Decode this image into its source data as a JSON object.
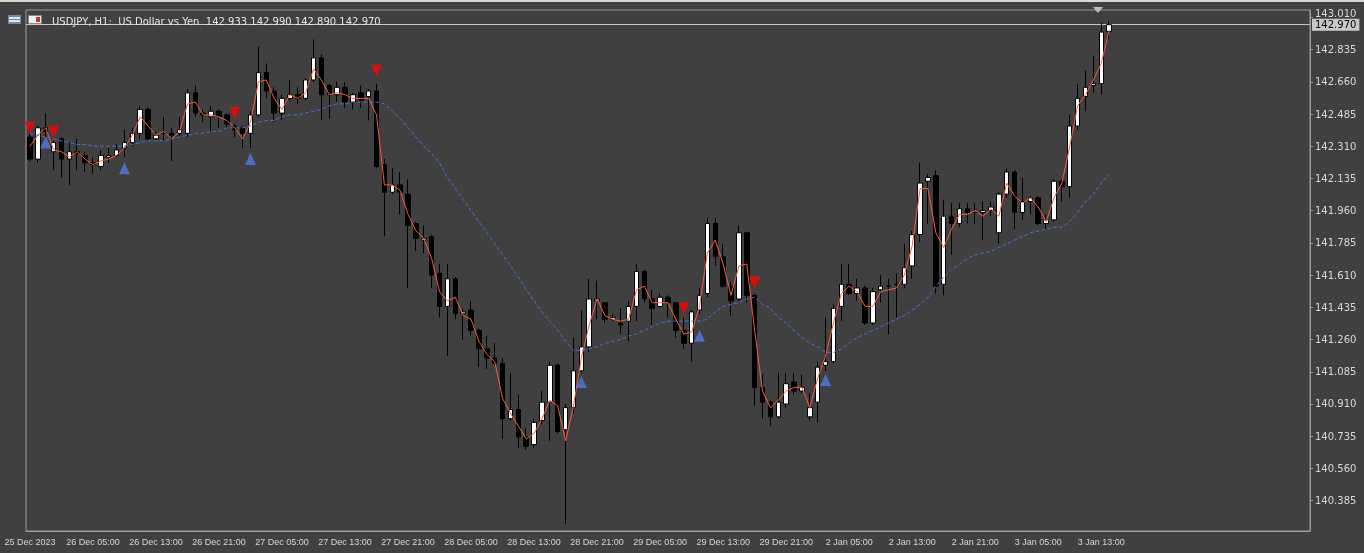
{
  "chart_data": {
    "type": "candlestick",
    "title": "USDJPY, H1:  US Dollar vs Yen  142.933 142.990 142.890 142.970",
    "categories": [
      "25 Dec 2023",
      null,
      null,
      null,
      null,
      null,
      null,
      null,
      "26 Dec 05:00",
      null,
      null,
      null,
      null,
      null,
      null,
      null,
      "26 Dec 13:00",
      null,
      null,
      null,
      null,
      null,
      null,
      null,
      "26 Dec 21:00",
      null,
      null,
      null,
      null,
      null,
      null,
      null,
      "27 Dec 05:00",
      null,
      null,
      null,
      null,
      null,
      null,
      null,
      "27 Dec 13:00",
      null,
      null,
      null,
      null,
      null,
      null,
      null,
      "27 Dec 21:00",
      null,
      null,
      null,
      null,
      null,
      null,
      null,
      "28 Dec 05:00",
      null,
      null,
      null,
      null,
      null,
      null,
      null,
      "28 Dec 13:00",
      null,
      null,
      null,
      null,
      null,
      null,
      null,
      "28 Dec 21:00",
      null,
      null,
      null,
      null,
      null,
      null,
      null,
      "29 Dec 05:00",
      null,
      null,
      null,
      null,
      null,
      null,
      null,
      "29 Dec 13:00",
      null,
      null,
      null,
      null,
      null,
      null,
      null,
      "29 Dec 21:00",
      null,
      null,
      null,
      null,
      null,
      null,
      null,
      "2 Jan 05:00",
      null,
      null,
      null,
      null,
      null,
      null,
      null,
      "2 Jan 13:00",
      null,
      null,
      null,
      null,
      null,
      null,
      null,
      "2 Jan 21:00",
      null,
      null,
      null,
      null,
      null,
      null,
      null,
      "3 Jan 05:00",
      null,
      null,
      null,
      null,
      null,
      null,
      null,
      "3 Jan 13:00",
      null
    ],
    "ohlc": [
      [
        142.36,
        142.38,
        142.23,
        142.24
      ],
      [
        142.24,
        142.42,
        142.22,
        142.41
      ],
      [
        142.41,
        142.49,
        142.36,
        142.39
      ],
      [
        142.28,
        142.34,
        142.18,
        142.33
      ],
      [
        142.35,
        142.36,
        142.14,
        142.24
      ],
      [
        142.24,
        142.33,
        142.1,
        142.28
      ],
      [
        142.28,
        142.35,
        142.18,
        142.27
      ],
      [
        142.26,
        142.28,
        142.17,
        142.22
      ],
      [
        142.22,
        142.25,
        142.16,
        142.21
      ],
      [
        142.2,
        142.29,
        142.18,
        142.26
      ],
      [
        142.25,
        142.3,
        142.22,
        142.26
      ],
      [
        142.26,
        142.32,
        142.25,
        142.29
      ],
      [
        142.3,
        142.4,
        142.25,
        142.33
      ],
      [
        142.33,
        142.41,
        142.31,
        142.38
      ],
      [
        142.38,
        142.53,
        142.35,
        142.51
      ],
      [
        142.51,
        142.52,
        142.34,
        142.35
      ],
      [
        142.35,
        142.39,
        142.34,
        142.37
      ],
      [
        142.38,
        142.47,
        142.34,
        142.38
      ],
      [
        142.38,
        142.41,
        142.23,
        142.37
      ],
      [
        142.38,
        142.47,
        142.36,
        142.4
      ],
      [
        142.38,
        142.62,
        142.36,
        142.6
      ],
      [
        142.6,
        142.64,
        142.47,
        142.49
      ],
      [
        142.49,
        142.51,
        142.44,
        142.48
      ],
      [
        142.47,
        142.53,
        142.39,
        142.5
      ],
      [
        142.5,
        142.51,
        142.41,
        142.47
      ],
      [
        142.48,
        142.49,
        142.41,
        142.43
      ],
      [
        142.42,
        142.43,
        142.36,
        142.4
      ],
      [
        142.41,
        142.42,
        142.3,
        142.38
      ],
      [
        142.38,
        142.5,
        142.3,
        142.48
      ],
      [
        142.48,
        142.85,
        142.47,
        142.71
      ],
      [
        142.71,
        142.76,
        142.57,
        142.61
      ],
      [
        142.61,
        142.63,
        142.44,
        142.49
      ],
      [
        142.49,
        142.59,
        142.45,
        142.57
      ],
      [
        142.57,
        142.67,
        142.56,
        142.59
      ],
      [
        142.59,
        142.63,
        142.54,
        142.57
      ],
      [
        142.57,
        142.68,
        142.56,
        142.67
      ],
      [
        142.67,
        142.89,
        142.66,
        142.79
      ],
      [
        142.79,
        142.81,
        142.45,
        142.59
      ],
      [
        142.64,
        142.65,
        142.46,
        142.59
      ],
      [
        142.59,
        142.66,
        142.55,
        142.63
      ],
      [
        142.63,
        142.66,
        142.52,
        142.55
      ],
      [
        142.55,
        142.6,
        142.51,
        142.59
      ],
      [
        142.6,
        142.64,
        142.52,
        142.56
      ],
      [
        142.58,
        142.62,
        142.45,
        142.61
      ],
      [
        142.61,
        142.65,
        142.19,
        142.2
      ],
      [
        142.21,
        142.24,
        141.82,
        142.06
      ],
      [
        142.06,
        142.19,
        142.05,
        142.1
      ],
      [
        142.1,
        142.17,
        141.94,
        142.06
      ],
      [
        142.05,
        142.13,
        141.54,
        141.88
      ],
      [
        141.89,
        141.9,
        141.74,
        141.81
      ],
      [
        141.8,
        141.88,
        141.73,
        141.81
      ],
      [
        141.82,
        141.83,
        141.54,
        141.61
      ],
      [
        141.62,
        141.67,
        141.38,
        141.44
      ],
      [
        141.44,
        141.67,
        141.17,
        141.59
      ],
      [
        141.59,
        141.6,
        141.37,
        141.4
      ],
      [
        141.4,
        141.43,
        141.26,
        141.41
      ],
      [
        141.42,
        141.47,
        141.28,
        141.31
      ],
      [
        141.31,
        141.32,
        141.11,
        141.21
      ],
      [
        141.21,
        141.28,
        141.1,
        141.16
      ],
      [
        141.16,
        141.24,
        141.12,
        141.13
      ],
      [
        141.13,
        141.16,
        140.72,
        140.83
      ],
      [
        140.83,
        141.08,
        140.82,
        140.88
      ],
      [
        140.88,
        140.96,
        140.67,
        140.73
      ],
      [
        140.73,
        140.78,
        140.66,
        140.68
      ],
      [
        140.69,
        140.83,
        140.67,
        140.81
      ],
      [
        140.82,
        140.98,
        140.8,
        140.92
      ],
      [
        140.92,
        141.14,
        140.71,
        141.12
      ],
      [
        141.12,
        141.13,
        140.75,
        140.76
      ],
      [
        140.77,
        140.91,
        140.26,
        140.89
      ],
      [
        140.89,
        141.27,
        140.86,
        141.09
      ],
      [
        141.09,
        141.42,
        141.08,
        141.22
      ],
      [
        141.22,
        141.59,
        141.19,
        141.48
      ],
      [
        141.47,
        141.58,
        141.37,
        141.48
      ],
      [
        141.46,
        141.46,
        141.35,
        141.37
      ],
      [
        141.37,
        141.4,
        141.36,
        141.38
      ],
      [
        141.35,
        141.43,
        141.29,
        141.34
      ],
      [
        141.36,
        141.47,
        141.25,
        141.44
      ],
      [
        141.44,
        141.67,
        141.36,
        141.63
      ],
      [
        141.63,
        141.64,
        141.46,
        141.48
      ],
      [
        141.48,
        141.53,
        141.34,
        141.43
      ],
      [
        141.44,
        141.51,
        141.43,
        141.49
      ],
      [
        141.49,
        141.5,
        141.38,
        141.46
      ],
      [
        141.46,
        141.46,
        141.27,
        141.31
      ],
      [
        141.31,
        141.38,
        141.21,
        141.24
      ],
      [
        141.24,
        141.42,
        141.14,
        141.41
      ],
      [
        141.42,
        141.54,
        141.4,
        141.5
      ],
      [
        141.51,
        141.92,
        141.49,
        141.89
      ],
      [
        141.89,
        141.92,
        141.66,
        141.71
      ],
      [
        141.71,
        141.78,
        141.54,
        141.55
      ],
      [
        141.55,
        141.57,
        141.39,
        141.47
      ],
      [
        141.48,
        141.88,
        141.47,
        141.84
      ],
      [
        141.84,
        141.84,
        141.46,
        141.5
      ],
      [
        141.5,
        141.51,
        140.9,
        141.0
      ],
      [
        141.0,
        141.07,
        140.83,
        140.92
      ],
      [
        140.92,
        140.93,
        140.79,
        140.84
      ],
      [
        140.84,
        141.08,
        140.83,
        140.92
      ],
      [
        140.91,
        141.08,
        140.89,
        141.02
      ],
      [
        141.03,
        141.08,
        140.96,
        140.98
      ],
      [
        140.98,
        141.07,
        140.97,
        141.0
      ],
      [
        140.84,
        140.97,
        140.82,
        140.89
      ],
      [
        140.92,
        141.14,
        140.81,
        141.11
      ],
      [
        141.12,
        141.38,
        141.09,
        141.14
      ],
      [
        141.14,
        141.45,
        141.13,
        141.43
      ],
      [
        141.44,
        141.67,
        141.36,
        141.56
      ],
      [
        141.56,
        141.67,
        141.5,
        141.51
      ],
      [
        141.51,
        141.59,
        141.47,
        141.54
      ],
      [
        141.54,
        141.55,
        141.34,
        141.35
      ],
      [
        141.35,
        141.54,
        141.34,
        141.52
      ],
      [
        141.53,
        141.61,
        141.46,
        141.55
      ],
      [
        141.55,
        141.59,
        141.29,
        141.55
      ],
      [
        141.56,
        141.62,
        141.38,
        141.56
      ],
      [
        141.56,
        141.78,
        141.54,
        141.65
      ],
      [
        141.66,
        141.85,
        141.59,
        141.83
      ],
      [
        141.83,
        142.22,
        141.79,
        142.11
      ],
      [
        142.12,
        142.16,
        141.89,
        142.14
      ],
      [
        142.15,
        142.18,
        141.51,
        141.55
      ],
      [
        141.56,
        142.02,
        141.5,
        141.93
      ],
      [
        141.93,
        142.0,
        141.72,
        141.89
      ],
      [
        141.89,
        142.0,
        141.87,
        141.97
      ],
      [
        141.97,
        142.0,
        141.89,
        141.95
      ],
      [
        141.95,
        142.0,
        141.89,
        141.95
      ],
      [
        141.95,
        142.01,
        141.8,
        141.96
      ],
      [
        141.96,
        142.01,
        141.93,
        141.98
      ],
      [
        141.84,
        142.06,
        141.78,
        142.05
      ],
      [
        142.05,
        142.19,
        142.03,
        142.17
      ],
      [
        142.17,
        142.18,
        141.86,
        141.95
      ],
      [
        141.95,
        142.14,
        141.91,
        142.01
      ],
      [
        142.01,
        142.04,
        141.94,
        142.03
      ],
      [
        142.03,
        142.04,
        141.88,
        141.89
      ],
      [
        141.89,
        141.94,
        141.86,
        141.91
      ],
      [
        141.91,
        142.13,
        141.9,
        142.12
      ],
      [
        142.12,
        142.13,
        142.01,
        142.09
      ],
      [
        142.09,
        142.48,
        142.03,
        142.42
      ],
      [
        142.42,
        142.65,
        142.4,
        142.57
      ],
      [
        142.58,
        142.72,
        142.5,
        142.63
      ],
      [
        142.64,
        142.8,
        142.6,
        142.65
      ],
      [
        142.65,
        142.98,
        142.59,
        142.93
      ],
      [
        142.933,
        142.99,
        142.89,
        142.97
      ]
    ],
    "series": [
      {
        "type": "line",
        "color": "#ff5a3c",
        "marker": "none",
        "values": [
          142.31,
          142.37,
          142.41,
          142.29,
          142.28,
          142.25,
          142.28,
          142.24,
          142.21,
          142.23,
          142.24,
          142.26,
          142.3,
          142.37,
          142.47,
          142.42,
          142.37,
          142.39,
          142.35,
          142.39,
          142.54,
          142.55,
          142.48,
          142.48,
          142.47,
          142.45,
          142.41,
          142.35,
          142.44,
          142.66,
          142.67,
          142.57,
          142.51,
          142.59,
          142.57,
          142.6,
          142.73,
          142.67,
          142.59,
          142.6,
          142.59,
          142.57,
          142.57,
          142.57,
          142.48,
          142.1,
          142.1,
          142.07,
          141.94,
          141.85,
          141.81,
          141.7,
          141.52,
          141.47,
          141.49,
          141.39,
          141.37,
          141.25,
          141.18,
          141.14,
          140.94,
          140.86,
          140.79,
          140.72,
          140.75,
          140.83,
          140.93,
          140.9,
          140.71,
          140.9,
          141.16,
          141.34,
          141.48,
          141.39,
          141.37,
          141.36,
          141.37,
          141.53,
          141.55,
          141.46,
          141.46,
          141.46,
          141.37,
          141.29,
          141.3,
          141.44,
          141.73,
          141.8,
          141.67,
          141.5,
          141.66,
          141.67,
          141.31,
          140.98,
          140.89,
          140.93,
          140.98,
          141.0,
          141.0,
          140.89,
          141.05,
          141.17,
          141.35,
          141.51,
          141.55,
          141.52,
          141.44,
          141.44,
          141.52,
          141.53,
          141.54,
          141.61,
          141.77,
          142.08,
          142.08,
          141.84,
          141.76,
          141.86,
          141.94,
          141.94,
          141.96,
          141.93,
          141.97,
          141.93,
          142.11,
          142.04,
          142.0,
          142.03,
          141.98,
          141.9,
          142.03,
          142.11,
          142.31,
          142.53,
          142.59,
          142.67,
          142.76,
          142.94
        ]
      },
      {
        "type": "line",
        "color": "#4a6fd8",
        "marker": "none",
        "line_style": "dashed",
        "values": [
          142.38,
          142.37,
          142.36,
          142.35,
          142.34,
          142.33,
          142.32,
          142.32,
          142.31,
          142.31,
          142.31,
          142.31,
          142.31,
          142.32,
          142.33,
          142.34,
          142.34,
          142.34,
          142.35,
          142.36,
          142.37,
          142.38,
          142.38,
          142.39,
          142.39,
          142.41,
          142.41,
          142.41,
          142.42,
          142.44,
          142.45,
          142.45,
          142.47,
          142.48,
          142.48,
          142.49,
          142.5,
          142.51,
          142.53,
          142.54,
          142.54,
          142.55,
          142.55,
          142.55,
          142.55,
          142.54,
          142.5,
          142.46,
          142.41,
          142.36,
          142.31,
          142.27,
          142.22,
          142.14,
          142.08,
          142.02,
          141.96,
          141.9,
          141.84,
          141.78,
          141.72,
          141.66,
          141.6,
          141.53,
          141.47,
          141.41,
          141.36,
          141.31,
          141.25,
          141.2,
          141.2,
          141.21,
          141.22,
          141.24,
          141.25,
          141.26,
          141.28,
          141.29,
          141.31,
          141.33,
          141.35,
          141.36,
          141.36,
          141.36,
          141.36,
          141.36,
          141.37,
          141.41,
          141.44,
          141.45,
          141.46,
          141.48,
          141.49,
          141.45,
          141.43,
          141.38,
          141.35,
          141.31,
          141.27,
          141.24,
          141.22,
          141.19,
          141.19,
          141.21,
          141.24,
          141.27,
          141.29,
          141.31,
          141.33,
          141.35,
          141.37,
          141.39,
          141.42,
          141.45,
          141.49,
          141.55,
          141.6,
          141.64,
          141.67,
          141.7,
          141.72,
          141.73,
          141.74,
          141.76,
          141.78,
          141.8,
          141.82,
          141.84,
          141.85,
          141.86,
          141.87,
          141.87,
          141.9,
          141.95,
          142.01,
          142.05,
          142.11,
          142.16
        ]
      },
      {
        "type": "scatter",
        "color": "#ff0000",
        "marker": "triangle",
        "values": [
          142.41,
          null,
          null,
          142.39,
          null,
          null,
          null,
          null,
          null,
          null,
          null,
          null,
          null,
          null,
          null,
          null,
          null,
          null,
          null,
          null,
          null,
          null,
          null,
          null,
          null,
          null,
          142.49,
          null,
          null,
          null,
          null,
          null,
          null,
          null,
          null,
          null,
          null,
          null,
          null,
          null,
          null,
          null,
          null,
          null,
          142.72,
          null,
          null,
          null,
          null,
          null,
          null,
          null,
          null,
          null,
          null,
          null,
          null,
          null,
          null,
          null,
          null,
          null,
          null,
          null,
          null,
          null,
          null,
          null,
          null,
          null,
          null,
          null,
          null,
          null,
          null,
          null,
          null,
          null,
          null,
          null,
          null,
          null,
          null,
          141.43,
          null,
          null,
          null,
          null,
          null,
          null,
          null,
          null,
          141.57,
          null,
          null,
          null,
          null,
          null,
          null,
          null,
          null,
          null,
          null,
          null,
          null,
          null,
          null,
          null,
          null,
          null,
          null,
          null,
          null,
          null,
          null,
          null,
          null,
          null,
          null,
          null,
          null,
          null,
          null,
          null,
          null,
          null,
          null,
          null,
          null,
          null,
          null,
          null,
          null,
          null,
          null,
          null,
          null,
          null
        ]
      },
      {
        "type": "scatter",
        "color": "#4f7be0",
        "marker": "triangle",
        "values": [
          null,
          null,
          142.33,
          null,
          null,
          null,
          null,
          null,
          null,
          null,
          null,
          null,
          142.19,
          null,
          null,
          null,
          null,
          null,
          null,
          null,
          null,
          null,
          null,
          null,
          null,
          null,
          null,
          null,
          142.24,
          null,
          null,
          null,
          null,
          null,
          null,
          null,
          null,
          null,
          null,
          null,
          null,
          null,
          null,
          null,
          null,
          null,
          null,
          null,
          null,
          null,
          null,
          null,
          null,
          null,
          null,
          null,
          null,
          null,
          null,
          null,
          null,
          null,
          null,
          null,
          null,
          null,
          null,
          null,
          null,
          null,
          141.03,
          null,
          null,
          null,
          null,
          null,
          null,
          null,
          null,
          null,
          null,
          null,
          null,
          null,
          null,
          141.28,
          null,
          null,
          null,
          null,
          null,
          null,
          null,
          null,
          null,
          null,
          null,
          null,
          null,
          null,
          null,
          141.04,
          null,
          null,
          null,
          null,
          null,
          null,
          null,
          null,
          null,
          null,
          null,
          null,
          null,
          null,
          null,
          null,
          null,
          null,
          null,
          null,
          null,
          null,
          null,
          null,
          null,
          null,
          null,
          null,
          null,
          null,
          null,
          null,
          null,
          null,
          null,
          null
        ]
      }
    ],
    "ylim": [
      140.22,
      143.05
    ],
    "yticks": [
      140.385,
      {
        "value": 140.56,
        "label": "140.560"
      },
      140.735,
      {
        "value": 140.91,
        "label": "140.910"
      },
      141.085,
      {
        "value": 141.26,
        "label": "141.260"
      },
      141.435,
      {
        "value": 141.61,
        "label": "141.610"
      },
      141.785,
      {
        "value": 141.96,
        "label": "141.960"
      },
      142.135,
      {
        "value": 142.31,
        "label": "142.310"
      },
      142.485,
      {
        "value": 142.66,
        "label": "142.660"
      },
      142.835,
      {
        "value": 143.01,
        "label": "143.010"
      }
    ],
    "ref_lines": [
      {
        "axis": "y",
        "value": 142.97,
        "label": "142.970",
        "color": "#c8c8c8"
      }
    ],
    "grid": false
  }
}
